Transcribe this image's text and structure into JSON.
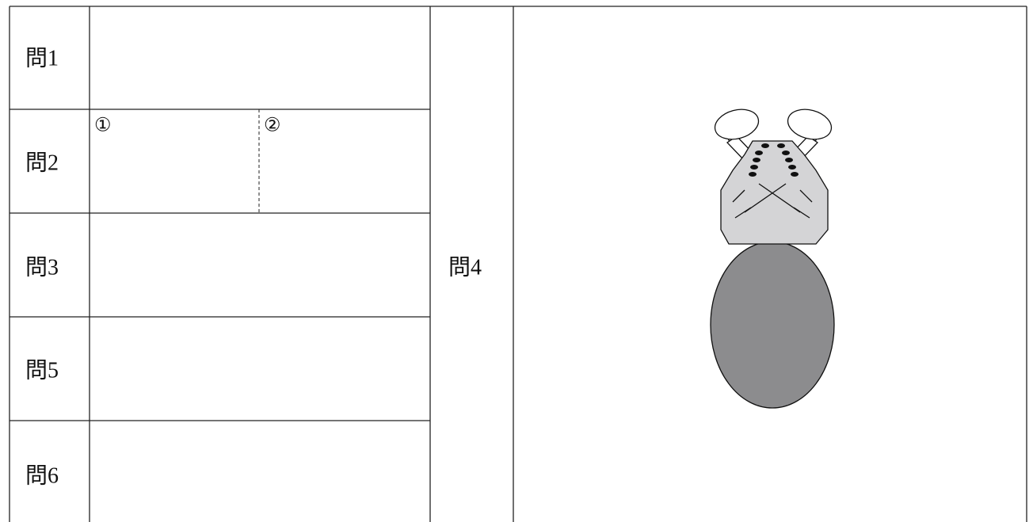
{
  "rows": [
    {
      "label": "問1"
    },
    {
      "label": "問2",
      "parts": [
        "①",
        "②"
      ]
    },
    {
      "label": "問3"
    },
    {
      "label": "問5"
    },
    {
      "label": "問6"
    }
  ],
  "side": {
    "label": "問4"
  }
}
